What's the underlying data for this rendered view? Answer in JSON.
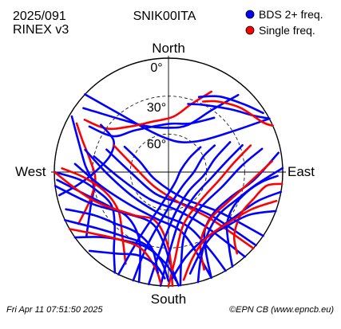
{
  "header": {
    "date_code": "2025/091",
    "format": "RINEX v3",
    "station": "SNIK00ITA"
  },
  "footer": {
    "timestamp": "Fri Apr 11 07:51:50 2025",
    "credit": "©EPN CB (www.epncb.eu)"
  },
  "chart_data": {
    "type": "scatter",
    "projection": "polar skyplot (azimuth clockwise from North, elevation 90° at centre to 0° at rim)",
    "directions": {
      "north": "North",
      "east": "East",
      "south": "South",
      "west": "West"
    },
    "elevation_rings": [
      {
        "elevation": 0,
        "label": "0°"
      },
      {
        "elevation": 30,
        "label": "30°"
      },
      {
        "elevation": 60,
        "label": "60°"
      }
    ],
    "legend": {
      "position": "top-right",
      "entries": [
        {
          "label": "BDS 2+ freq.",
          "color": "#0000ff"
        },
        {
          "label": "Single freq.",
          "color": "#ff0000"
        }
      ]
    },
    "colors": {
      "dual": "#0000ff",
      "single": "#ff0000"
    },
    "series": [
      {
        "group": "dual",
        "points": [
          [
            313,
            0
          ],
          [
            320,
            30
          ],
          [
            333,
            52
          ],
          [
            355,
            63
          ],
          [
            25,
            64
          ],
          [
            48,
            52
          ],
          [
            58,
            28
          ],
          [
            62,
            0
          ]
        ]
      },
      {
        "group": "dual",
        "points": [
          [
            307,
            6
          ],
          [
            318,
            34
          ],
          [
            335,
            50
          ],
          [
            0,
            55
          ],
          [
            22,
            50
          ],
          [
            35,
            30
          ],
          [
            42,
            8
          ]
        ]
      },
      {
        "group": "single",
        "points": [
          [
            302,
            12
          ],
          [
            305,
            30
          ],
          [
            318,
            42
          ],
          [
            340,
            48
          ],
          [
            5,
            46
          ],
          [
            18,
            34
          ],
          [
            28,
            18
          ]
        ]
      },
      {
        "group": "dual",
        "points": [
          [
            300,
            18
          ],
          [
            303,
            38
          ],
          [
            322,
            48
          ],
          [
            0,
            52
          ],
          [
            24,
            48
          ],
          [
            40,
            34
          ]
        ]
      },
      {
        "group": "dual",
        "points": [
          [
            16,
            34
          ],
          [
            28,
            30
          ],
          [
            45,
            20
          ],
          [
            56,
            10
          ],
          [
            62,
            0
          ]
        ]
      },
      {
        "group": "single",
        "points": [
          [
            26,
            28
          ],
          [
            35,
            22
          ],
          [
            48,
            14
          ],
          [
            62,
            6
          ],
          [
            66,
            0
          ]
        ]
      },
      {
        "group": "dual",
        "points": [
          [
            22,
            26
          ],
          [
            34,
            18
          ],
          [
            48,
            10
          ],
          [
            58,
            2
          ]
        ]
      },
      {
        "group": "dual",
        "points": [
          [
            300,
            2
          ],
          [
            290,
            14
          ],
          [
            275,
            24
          ],
          [
            260,
            30
          ],
          [
            245,
            22
          ],
          [
            232,
            8
          ]
        ]
      },
      {
        "group": "single",
        "points": [
          [
            298,
            8
          ],
          [
            290,
            18
          ],
          [
            278,
            28
          ],
          [
            264,
            32
          ],
          [
            250,
            24
          ],
          [
            240,
            8
          ]
        ]
      },
      {
        "group": "dual",
        "points": [
          [
            258,
            2
          ],
          [
            262,
            18
          ],
          [
            270,
            32
          ],
          [
            285,
            42
          ],
          [
            300,
            40
          ],
          [
            305,
            25
          ]
        ]
      },
      {
        "group": "dual",
        "points": [
          [
            270,
            0
          ],
          [
            265,
            20
          ],
          [
            255,
            32
          ],
          [
            240,
            38
          ],
          [
            225,
            30
          ],
          [
            215,
            15
          ],
          [
            208,
            0
          ]
        ]
      },
      {
        "group": "single",
        "points": [
          [
            272,
            6
          ],
          [
            266,
            24
          ],
          [
            252,
            38
          ],
          [
            232,
            40
          ],
          [
            216,
            28
          ],
          [
            205,
            10
          ]
        ]
      },
      {
        "group": "dual",
        "points": [
          [
            266,
            2
          ],
          [
            255,
            22
          ],
          [
            240,
            36
          ],
          [
            222,
            42
          ],
          [
            205,
            34
          ],
          [
            198,
            18
          ],
          [
            195,
            0
          ]
        ]
      },
      {
        "group": "dual",
        "points": [
          [
            263,
            0
          ],
          [
            248,
            24
          ],
          [
            228,
            42
          ],
          [
            200,
            48
          ],
          [
            185,
            36
          ],
          [
            178,
            14
          ],
          [
            175,
            0
          ]
        ]
      },
      {
        "group": "dual",
        "points": [
          [
            275,
            16
          ],
          [
            258,
            36
          ],
          [
            230,
            50
          ],
          [
            195,
            52
          ],
          [
            168,
            42
          ],
          [
            160,
            18
          ],
          [
            158,
            0
          ]
        ]
      },
      {
        "group": "dual",
        "points": [
          [
            285,
            22
          ],
          [
            268,
            42
          ],
          [
            235,
            56
          ],
          [
            190,
            56
          ],
          [
            160,
            44
          ],
          [
            152,
            20
          ],
          [
            150,
            0
          ]
        ]
      },
      {
        "group": "single",
        "points": [
          [
            270,
            0
          ],
          [
            250,
            26
          ],
          [
            220,
            46
          ],
          [
            195,
            50
          ],
          [
            180,
            30
          ],
          [
            178,
            0
          ]
        ]
      },
      {
        "group": "dual",
        "points": [
          [
            282,
            30
          ],
          [
            262,
            52
          ],
          [
            215,
            64
          ],
          [
            165,
            58
          ],
          [
            145,
            36
          ],
          [
            138,
            0
          ]
        ]
      },
      {
        "group": "dual",
        "points": [
          [
            290,
            38
          ],
          [
            270,
            60
          ],
          [
            210,
            70
          ],
          [
            155,
            62
          ],
          [
            135,
            40
          ],
          [
            130,
            0
          ]
        ]
      },
      {
        "group": "dual",
        "points": [
          [
            300,
            50
          ],
          [
            290,
            66
          ],
          [
            240,
            78
          ],
          [
            150,
            66
          ],
          [
            128,
            38
          ],
          [
            124,
            0
          ]
        ]
      },
      {
        "group": "single",
        "points": [
          [
            296,
            42
          ],
          [
            280,
            62
          ],
          [
            225,
            74
          ],
          [
            160,
            64
          ],
          [
            138,
            40
          ],
          [
            132,
            0
          ]
        ]
      },
      {
        "group": "dual",
        "points": [
          [
            80,
            2
          ],
          [
            95,
            22
          ],
          [
            110,
            36
          ],
          [
            130,
            42
          ],
          [
            148,
            36
          ],
          [
            155,
            20
          ],
          [
            158,
            0
          ]
        ]
      },
      {
        "group": "single",
        "points": [
          [
            84,
            8
          ],
          [
            100,
            28
          ],
          [
            118,
            38
          ],
          [
            140,
            40
          ],
          [
            156,
            28
          ],
          [
            160,
            8
          ]
        ]
      },
      {
        "group": "dual",
        "points": [
          [
            88,
            0
          ],
          [
            98,
            20
          ],
          [
            112,
            32
          ],
          [
            130,
            38
          ],
          [
            148,
            32
          ],
          [
            160,
            16
          ],
          [
            165,
            0
          ]
        ]
      },
      {
        "group": "dual",
        "points": [
          [
            76,
            14
          ],
          [
            85,
            32
          ],
          [
            105,
            46
          ],
          [
            140,
            52
          ],
          [
            165,
            40
          ],
          [
            172,
            18
          ],
          [
            174,
            0
          ]
        ]
      },
      {
        "group": "single",
        "points": [
          [
            72,
            22
          ],
          [
            82,
            38
          ],
          [
            100,
            50
          ],
          [
            135,
            56
          ],
          [
            165,
            46
          ],
          [
            176,
            20
          ],
          [
            180,
            0
          ]
        ]
      },
      {
        "group": "dual",
        "points": [
          [
            70,
            28
          ],
          [
            80,
            44
          ],
          [
            98,
            56
          ],
          [
            135,
            62
          ],
          [
            168,
            50
          ],
          [
            180,
            24
          ],
          [
            184,
            0
          ]
        ]
      },
      {
        "group": "dual",
        "points": [
          [
            64,
            36
          ],
          [
            74,
            52
          ],
          [
            95,
            62
          ],
          [
            135,
            68
          ],
          [
            172,
            56
          ],
          [
            186,
            28
          ],
          [
            190,
            0
          ]
        ]
      },
      {
        "group": "dual",
        "points": [
          [
            100,
            0
          ],
          [
            108,
            16
          ],
          [
            122,
            26
          ],
          [
            140,
            30
          ],
          [
            156,
            24
          ],
          [
            168,
            8
          ]
        ]
      },
      {
        "group": "dual",
        "points": [
          [
            92,
            4
          ],
          [
            96,
            16
          ],
          [
            104,
            26
          ],
          [
            118,
            32
          ],
          [
            132,
            28
          ],
          [
            142,
            12
          ],
          [
            146,
            0
          ]
        ]
      },
      {
        "group": "single",
        "points": [
          [
            96,
            0
          ],
          [
            98,
            12
          ],
          [
            108,
            20
          ],
          [
            120,
            24
          ],
          [
            134,
            18
          ],
          [
            140,
            6
          ]
        ]
      },
      {
        "group": "dual",
        "points": [
          [
            60,
            48
          ],
          [
            66,
            60
          ],
          [
            90,
            70
          ],
          [
            140,
            74
          ],
          [
            182,
            60
          ],
          [
            196,
            30
          ],
          [
            198,
            0
          ]
        ]
      },
      {
        "group": "dual",
        "points": [
          [
            52,
            58
          ],
          [
            56,
            70
          ],
          [
            80,
            80
          ],
          [
            150,
            80
          ],
          [
            192,
            64
          ],
          [
            204,
            32
          ],
          [
            206,
            0
          ]
        ]
      },
      {
        "group": "dual",
        "points": [
          [
            110,
            0
          ],
          [
            118,
            18
          ],
          [
            135,
            28
          ],
          [
            152,
            30
          ],
          [
            168,
            22
          ],
          [
            178,
            6
          ]
        ]
      },
      {
        "group": "single",
        "points": [
          [
            105,
            2
          ],
          [
            114,
            18
          ],
          [
            130,
            28
          ],
          [
            150,
            30
          ],
          [
            164,
            20
          ],
          [
            172,
            4
          ]
        ]
      },
      {
        "group": "dual",
        "points": [
          [
            235,
            0
          ],
          [
            226,
            16
          ],
          [
            212,
            26
          ],
          [
            196,
            28
          ],
          [
            182,
            18
          ],
          [
            176,
            4
          ]
        ]
      },
      {
        "group": "dual",
        "points": [
          [
            245,
            0
          ],
          [
            232,
            18
          ],
          [
            215,
            28
          ],
          [
            198,
            30
          ],
          [
            185,
            20
          ],
          [
            180,
            4
          ]
        ]
      },
      {
        "group": "single",
        "points": [
          [
            240,
            0
          ],
          [
            230,
            14
          ],
          [
            216,
            24
          ],
          [
            200,
            26
          ],
          [
            188,
            14
          ],
          [
            184,
            2
          ]
        ]
      },
      {
        "group": "dual",
        "points": [
          [
            225,
            2
          ],
          [
            212,
            14
          ],
          [
            200,
            20
          ],
          [
            188,
            16
          ],
          [
            182,
            6
          ]
        ]
      },
      {
        "group": "dual",
        "points": [
          [
            250,
            4
          ],
          [
            240,
            22
          ],
          [
            225,
            32
          ],
          [
            208,
            36
          ],
          [
            192,
            28
          ],
          [
            186,
            10
          ]
        ]
      }
    ]
  }
}
